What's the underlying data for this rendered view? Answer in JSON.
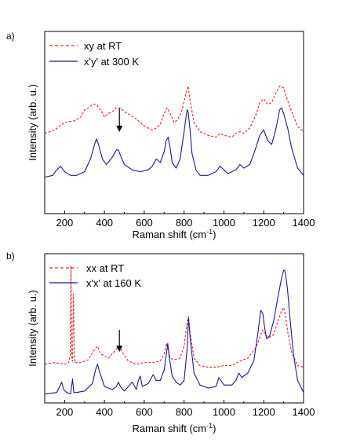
{
  "chart_data": [
    {
      "type": "line",
      "panel_label": "a)",
      "xlabel": "Raman shift (cm",
      "xlabel_sup": "-1",
      "xlabel_end": ")",
      "ylabel": "Intensity (arb. u.)",
      "xlim": [
        100,
        1400
      ],
      "ylim": [
        0,
        1
      ],
      "x_ticks": [
        200,
        400,
        600,
        800,
        1000,
        1200,
        1400
      ],
      "x_tick_labels": [
        "200",
        "400",
        "600",
        "800",
        "1000",
        "1200",
        "1400"
      ],
      "y_ticks_shown": false,
      "annotation": {
        "type": "arrow",
        "x": 475
      },
      "legend": {
        "placement": "top-left"
      },
      "series": [
        {
          "name": "xy at RT",
          "style": "dashed",
          "color": "#ee2222",
          "x": [
            100,
            150,
            200,
            250,
            280,
            300,
            320,
            340,
            360,
            380,
            400,
            420,
            440,
            460,
            480,
            500,
            530,
            560,
            600,
            640,
            660,
            680,
            700,
            715,
            730,
            750,
            770,
            790,
            800,
            810,
            820,
            830,
            850,
            880,
            920,
            960,
            980,
            1000,
            1040,
            1060,
            1080,
            1100,
            1130,
            1160,
            1180,
            1200,
            1220,
            1240,
            1260,
            1280,
            1300,
            1320,
            1340,
            1370,
            1400
          ],
          "y": [
            0.44,
            0.46,
            0.5,
            0.51,
            0.53,
            0.57,
            0.58,
            0.6,
            0.6,
            0.57,
            0.53,
            0.55,
            0.56,
            0.58,
            0.58,
            0.56,
            0.54,
            0.52,
            0.48,
            0.46,
            0.47,
            0.49,
            0.55,
            0.58,
            0.55,
            0.5,
            0.52,
            0.57,
            0.62,
            0.66,
            0.7,
            0.62,
            0.5,
            0.45,
            0.43,
            0.42,
            0.44,
            0.43,
            0.42,
            0.44,
            0.45,
            0.44,
            0.47,
            0.54,
            0.61,
            0.63,
            0.6,
            0.61,
            0.66,
            0.7,
            0.69,
            0.62,
            0.56,
            0.48,
            0.45
          ]
        },
        {
          "name": "x'y' at 300 K",
          "style": "solid",
          "color": "#1a1a8c",
          "x": [
            100,
            140,
            160,
            180,
            200,
            230,
            260,
            300,
            330,
            350,
            360,
            370,
            390,
            410,
            440,
            460,
            470,
            480,
            500,
            540,
            580,
            620,
            640,
            660,
            680,
            700,
            710,
            720,
            730,
            740,
            760,
            780,
            800,
            810,
            815,
            820,
            830,
            840,
            860,
            880,
            920,
            960,
            980,
            1000,
            1020,
            1060,
            1080,
            1100,
            1130,
            1160,
            1180,
            1200,
            1220,
            1240,
            1260,
            1280,
            1290,
            1300,
            1320,
            1340,
            1370,
            1400
          ],
          "y": [
            0.2,
            0.21,
            0.24,
            0.26,
            0.23,
            0.21,
            0.21,
            0.23,
            0.3,
            0.38,
            0.41,
            0.38,
            0.3,
            0.27,
            0.31,
            0.35,
            0.35,
            0.32,
            0.27,
            0.24,
            0.23,
            0.24,
            0.26,
            0.3,
            0.28,
            0.34,
            0.4,
            0.42,
            0.36,
            0.28,
            0.25,
            0.3,
            0.45,
            0.53,
            0.57,
            0.56,
            0.46,
            0.33,
            0.24,
            0.21,
            0.21,
            0.23,
            0.26,
            0.24,
            0.22,
            0.24,
            0.27,
            0.25,
            0.27,
            0.36,
            0.43,
            0.46,
            0.4,
            0.38,
            0.46,
            0.57,
            0.58,
            0.55,
            0.47,
            0.36,
            0.25,
            0.21
          ]
        }
      ]
    },
    {
      "type": "line",
      "panel_label": "b)",
      "xlabel": "Raman shift (cm",
      "xlabel_sup": "-1",
      "xlabel_end": ")",
      "ylabel": "Intensity (arb. u.)",
      "xlim": [
        100,
        1400
      ],
      "ylim": [
        0,
        1
      ],
      "x_ticks": [
        200,
        400,
        600,
        800,
        1000,
        1200,
        1400
      ],
      "x_tick_labels": [
        "200",
        "400",
        "600",
        "800",
        "1000",
        "1200",
        "1400"
      ],
      "y_ticks_shown": false,
      "annotation": {
        "type": "arrow",
        "x": 475
      },
      "legend": {
        "placement": "top-left"
      },
      "series": [
        {
          "name": "xx at RT",
          "style": "dashed",
          "color": "#ee2222",
          "x": [
            100,
            150,
            200,
            220,
            228,
            232,
            236,
            240,
            244,
            250,
            280,
            320,
            350,
            365,
            380,
            420,
            460,
            475,
            490,
            520,
            560,
            600,
            640,
            680,
            700,
            712,
            720,
            730,
            750,
            780,
            800,
            815,
            822,
            830,
            850,
            880,
            920,
            960,
            1000,
            1040,
            1080,
            1120,
            1160,
            1180,
            1195,
            1210,
            1230,
            1250,
            1270,
            1290,
            1300,
            1310,
            1320,
            1340,
            1370,
            1400
          ],
          "y": [
            0.26,
            0.27,
            0.26,
            0.27,
            0.32,
            0.92,
            0.3,
            0.28,
            0.73,
            0.27,
            0.27,
            0.29,
            0.36,
            0.38,
            0.33,
            0.3,
            0.36,
            0.38,
            0.34,
            0.28,
            0.26,
            0.27,
            0.27,
            0.28,
            0.33,
            0.4,
            0.36,
            0.3,
            0.29,
            0.3,
            0.38,
            0.54,
            0.58,
            0.47,
            0.3,
            0.25,
            0.24,
            0.24,
            0.25,
            0.25,
            0.28,
            0.3,
            0.37,
            0.44,
            0.49,
            0.45,
            0.44,
            0.46,
            0.54,
            0.62,
            0.64,
            0.58,
            0.48,
            0.34,
            0.25,
            0.24
          ]
        },
        {
          "name": "x'x' at 160 K",
          "style": "solid",
          "color": "#1a1a8c",
          "x": [
            100,
            160,
            175,
            185,
            195,
            210,
            230,
            236,
            240,
            246,
            260,
            300,
            340,
            355,
            365,
            375,
            400,
            440,
            460,
            470,
            480,
            500,
            520,
            540,
            560,
            570,
            580,
            590,
            620,
            645,
            660,
            680,
            700,
            712,
            718,
            725,
            740,
            760,
            780,
            800,
            815,
            822,
            830,
            850,
            880,
            920,
            960,
            975,
            985,
            1000,
            1040,
            1060,
            1075,
            1090,
            1120,
            1150,
            1170,
            1185,
            1195,
            1205,
            1215,
            1230,
            1250,
            1270,
            1290,
            1300,
            1305,
            1310,
            1320,
            1335,
            1350,
            1370,
            1400
          ],
          "y": [
            0.06,
            0.07,
            0.11,
            0.14,
            0.09,
            0.07,
            0.06,
            0.12,
            0.16,
            0.07,
            0.07,
            0.08,
            0.13,
            0.22,
            0.26,
            0.21,
            0.11,
            0.09,
            0.11,
            0.14,
            0.11,
            0.08,
            0.11,
            0.14,
            0.09,
            0.15,
            0.18,
            0.11,
            0.13,
            0.19,
            0.15,
            0.15,
            0.22,
            0.34,
            0.4,
            0.31,
            0.18,
            0.14,
            0.12,
            0.15,
            0.36,
            0.57,
            0.44,
            0.2,
            0.12,
            0.1,
            0.11,
            0.17,
            0.15,
            0.12,
            0.12,
            0.15,
            0.2,
            0.17,
            0.2,
            0.28,
            0.46,
            0.62,
            0.6,
            0.5,
            0.43,
            0.45,
            0.55,
            0.7,
            0.84,
            0.89,
            0.89,
            0.86,
            0.75,
            0.52,
            0.32,
            0.15,
            0.07
          ]
        }
      ]
    }
  ]
}
